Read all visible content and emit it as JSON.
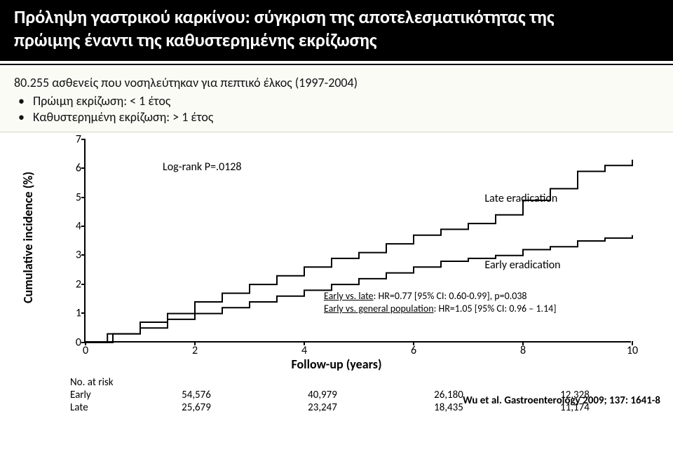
{
  "header": {
    "title_line1": "Πρόληψη γαστρικού καρκίνου: σύγκριση της αποτελεσματικότητας της",
    "title_line2": "πρώιμης έναντι της καθυστερημένης εκρίζωσης"
  },
  "intro": {
    "line": "80.255 ασθενείς που νοσηλεύτηκαν για πεπτικό έλκος (1997-2004)",
    "bullet1": "Πρώιμη εκρίζωση: < 1 έτος",
    "bullet2": "Καθυστερημένη εκρίζωση: > 1 έτος"
  },
  "chart": {
    "type": "line-step",
    "ylabel": "Cumulative incidence (%)",
    "xlabel": "Follow-up (years)",
    "ylim": [
      0,
      7
    ],
    "xlim": [
      0,
      10
    ],
    "yticks": [
      0,
      1,
      2,
      3,
      4,
      5,
      6,
      7
    ],
    "xticks": [
      0,
      2,
      4,
      6,
      8,
      10
    ],
    "xtick_labels": [
      "0",
      "2",
      "4",
      "6",
      "8",
      "10"
    ],
    "colors": {
      "axis": "#000000",
      "line": "#000000",
      "bg": "#ffffff"
    },
    "line_width": 2,
    "logrank_label": "Log-rank P=.0128",
    "series": [
      {
        "name": "Late eradication",
        "label_pos": {
          "x": 7.3,
          "y": 5.0
        },
        "points": [
          [
            0,
            0
          ],
          [
            0.4,
            0.3
          ],
          [
            1.0,
            0.7
          ],
          [
            1.5,
            1.0
          ],
          [
            2.0,
            1.4
          ],
          [
            2.5,
            1.7
          ],
          [
            3.0,
            2.0
          ],
          [
            3.5,
            2.3
          ],
          [
            4.0,
            2.6
          ],
          [
            4.5,
            2.9
          ],
          [
            5.0,
            3.1
          ],
          [
            5.5,
            3.4
          ],
          [
            6.0,
            3.7
          ],
          [
            6.5,
            3.9
          ],
          [
            7.0,
            4.1
          ],
          [
            7.5,
            4.4
          ],
          [
            8.0,
            4.9
          ],
          [
            8.5,
            5.3
          ],
          [
            9.0,
            5.9
          ],
          [
            9.5,
            6.1
          ],
          [
            10.0,
            6.3
          ]
        ]
      },
      {
        "name": "Early eradication",
        "label_pos": {
          "x": 7.3,
          "y": 2.7
        },
        "points": [
          [
            0,
            0
          ],
          [
            0.5,
            0.3
          ],
          [
            1.0,
            0.5
          ],
          [
            1.5,
            0.8
          ],
          [
            2.0,
            1.0
          ],
          [
            2.5,
            1.2
          ],
          [
            3.0,
            1.4
          ],
          [
            3.5,
            1.6
          ],
          [
            4.0,
            1.8
          ],
          [
            4.5,
            2.0
          ],
          [
            5.0,
            2.2
          ],
          [
            5.5,
            2.4
          ],
          [
            6.0,
            2.6
          ],
          [
            6.5,
            2.8
          ],
          [
            7.0,
            2.9
          ],
          [
            7.5,
            3.0
          ],
          [
            8.0,
            3.2
          ],
          [
            8.5,
            3.3
          ],
          [
            9.0,
            3.5
          ],
          [
            9.5,
            3.6
          ],
          [
            10.0,
            3.7
          ]
        ]
      }
    ]
  },
  "stats": {
    "line1_prefix": "Early vs. late",
    "line1_rest": ": HR=0.77 [95% CI: 0.60-0.99], p=0.038",
    "line2_prefix": "Early vs. general population",
    "line2_rest": ": HR=1.05 [95% CI: 0.96 – 1.14]"
  },
  "risk_table": {
    "header": "No. at risk",
    "rows": [
      {
        "label": "Early",
        "cells": [
          "54,576",
          "40,979",
          "26,180",
          "12,328"
        ]
      },
      {
        "label": "Late",
        "cells": [
          "25,679",
          "23,247",
          "18,435",
          "11,174"
        ]
      }
    ]
  },
  "citation": "Wu et al. Gastroenterology 2009; 137: 1641-8"
}
